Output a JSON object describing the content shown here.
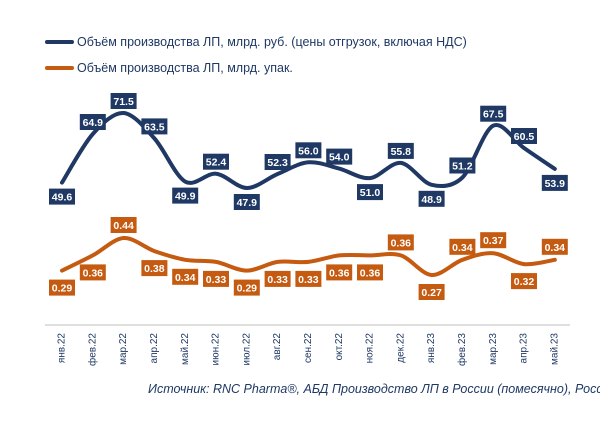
{
  "chart_data": {
    "type": "line",
    "categories": [
      "янв.22",
      "фев.22",
      "мар.22",
      "апр.22",
      "май.22",
      "июн.22",
      "июл.22",
      "авг.22",
      "сен.22",
      "окт.22",
      "ноя.22",
      "дек.22",
      "янв.23",
      "фев.23",
      "мар.23",
      "апр.23",
      "май.23"
    ],
    "series": [
      {
        "name": "Объём производства ЛП, млрд. руб. (цены отгрузок, включая НДС)",
        "color": "#1f3864",
        "values": [
          49.6,
          64.9,
          71.5,
          63.5,
          49.9,
          52.4,
          47.9,
          52.3,
          56.0,
          54.0,
          51.0,
          55.8,
          48.9,
          51.2,
          67.5,
          60.5,
          53.9
        ],
        "labels": [
          "49.6",
          "64.9",
          "71.5",
          "63.5",
          "49.9",
          "52.4",
          "47.9",
          "52.3",
          "56.0",
          "54.0",
          "51.0",
          "55.8",
          "48.9",
          "51.2",
          "67.5",
          "60.5",
          "53.9"
        ],
        "label_pos": [
          "below",
          "above",
          "above",
          "above",
          "below",
          "above",
          "below",
          "above",
          "above",
          "above",
          "below",
          "above",
          "below",
          "above",
          "above",
          "above",
          "below"
        ]
      },
      {
        "name": "Объём производства ЛП, млрд. упак.",
        "color": "#c55a11",
        "values": [
          0.29,
          0.36,
          0.44,
          0.38,
          0.34,
          0.33,
          0.29,
          0.33,
          0.33,
          0.36,
          0.36,
          0.36,
          0.27,
          0.34,
          0.37,
          0.32,
          0.34
        ],
        "labels": [
          "0.29",
          "0.36",
          "0.44",
          "0.38",
          "0.34",
          "0.33",
          "0.29",
          "0.33",
          "0.33",
          "0.36",
          "0.36",
          "0.36",
          "0.27",
          "0.34",
          "0.37",
          "0.32",
          "0.34"
        ],
        "label_pos": [
          "below",
          "below",
          "above",
          "below",
          "below",
          "below",
          "below",
          "below",
          "below",
          "below",
          "below",
          "above",
          "below",
          "above",
          "above",
          "below",
          "above"
        ]
      }
    ],
    "source": "Источник: RNC Pharma®, АБД Производство ЛП в России (помесячно), Росстат"
  }
}
